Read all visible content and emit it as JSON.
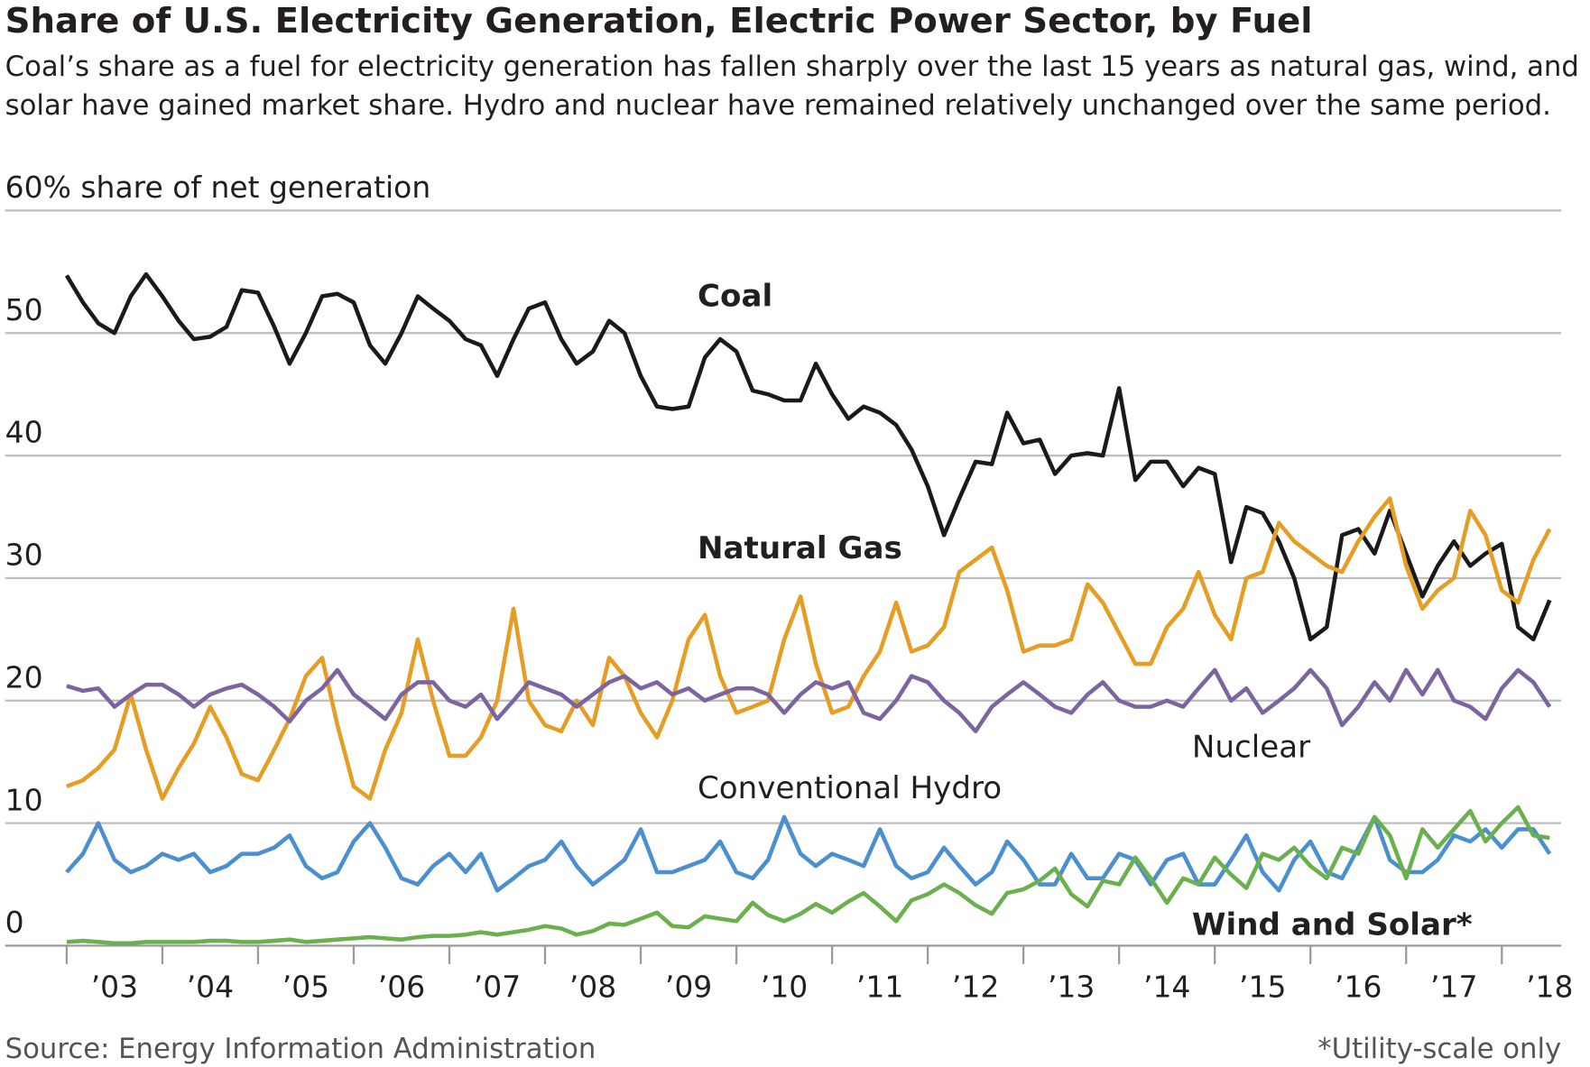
{
  "chart_data": {
    "type": "line",
    "title": "Share of U.S. Electricity Generation, Electric Power Sector, by Fuel",
    "subtitle": [
      "Coal’s share as a fuel for electricity generation has fallen sharply over the last 15 years as natural gas, wind, and",
      "solar have gained market share. Hydro and nuclear have remained relatively unchanged over the same period."
    ],
    "source": "Source:  Energy Information Administration",
    "note": "*Utility-scale only",
    "x": [
      2003,
      2003.17,
      2003.33,
      2003.5,
      2003.67,
      2003.83,
      2004,
      2004.17,
      2004.33,
      2004.5,
      2004.67,
      2004.83,
      2005,
      2005.17,
      2005.33,
      2005.5,
      2005.67,
      2005.83,
      2006,
      2006.17,
      2006.33,
      2006.5,
      2006.67,
      2006.83,
      2007,
      2007.17,
      2007.33,
      2007.5,
      2007.67,
      2007.83,
      2008,
      2008.17,
      2008.33,
      2008.5,
      2008.67,
      2008.83,
      2009,
      2009.17,
      2009.33,
      2009.5,
      2009.67,
      2009.83,
      2010,
      2010.17,
      2010.33,
      2010.5,
      2010.67,
      2010.83,
      2011,
      2011.17,
      2011.33,
      2011.5,
      2011.67,
      2011.83,
      2012,
      2012.17,
      2012.33,
      2012.5,
      2012.67,
      2012.83,
      2013,
      2013.17,
      2013.33,
      2013.5,
      2013.67,
      2013.83,
      2014,
      2014.17,
      2014.33,
      2014.5,
      2014.67,
      2014.83,
      2015,
      2015.17,
      2015.33,
      2015.5,
      2015.67,
      2015.83,
      2016,
      2016.17,
      2016.33,
      2016.5,
      2016.67,
      2016.83,
      2017,
      2017.17,
      2017.33,
      2017.5,
      2017.67,
      2017.83,
      2018,
      2018.17,
      2018.33,
      2018.5
    ],
    "series": [
      {
        "name": "Coal",
        "color": "#1a1a1a",
        "values": [
          54.7,
          52.5,
          50.8,
          50.0,
          53.0,
          54.8,
          53.0,
          51.0,
          49.5,
          49.7,
          50.5,
          53.5,
          53.3,
          50.5,
          47.5,
          50.0,
          53.0,
          53.2,
          52.5,
          49.0,
          47.5,
          50.0,
          53.0,
          52.0,
          51.0,
          49.5,
          49.0,
          46.5,
          49.5,
          52.0,
          52.5,
          49.5,
          47.5,
          48.5,
          51.0,
          50.0,
          46.5,
          44.0,
          43.8,
          44.0,
          48.0,
          49.5,
          48.5,
          45.3,
          45.0,
          44.5,
          44.5,
          47.5,
          45.0,
          43.0,
          44.0,
          43.5,
          42.5,
          40.5,
          37.5,
          33.5,
          36.5,
          39.5,
          39.3,
          43.5,
          41.0,
          41.3,
          38.5,
          40.0,
          40.2,
          40.0,
          45.5,
          38.0,
          39.5,
          39.5,
          37.5,
          39.0,
          38.5,
          31.3,
          35.8,
          35.3,
          33.0,
          30.0,
          25.0,
          26.0,
          33.5,
          34.0,
          32.0,
          35.5,
          32.0,
          28.5,
          31.0,
          33.0,
          31.0,
          32.0,
          32.8,
          26.0,
          25.0,
          28.2
        ]
      },
      {
        "name": "Natural Gas",
        "color": "#e69d24",
        "values": [
          13,
          13.5,
          14.5,
          16,
          20.5,
          16,
          12,
          14.5,
          16.5,
          19.5,
          17,
          14,
          13.5,
          16,
          18.5,
          22,
          23.5,
          18,
          13,
          12,
          16,
          19,
          25,
          20,
          15.5,
          15.5,
          17,
          20,
          27.5,
          20,
          18,
          17.5,
          20,
          18,
          23.5,
          22,
          19,
          17,
          20,
          25,
          27,
          22,
          19,
          19.5,
          20,
          25,
          28.5,
          23,
          19,
          19.5,
          22,
          24,
          28,
          24,
          24.5,
          26,
          30.5,
          31.5,
          32.5,
          29,
          24,
          24.5,
          24.5,
          25,
          29.5,
          28,
          25.5,
          23,
          23,
          26,
          27.5,
          30.5,
          27,
          25,
          30,
          30.5,
          34.5,
          33,
          32,
          31,
          30.5,
          33,
          35,
          36.5,
          31,
          27.5,
          29,
          30,
          35.5,
          33.5,
          29,
          28,
          31.5,
          34
        ]
      },
      {
        "name": "Nuclear",
        "color": "#7b64a0",
        "values": [
          21.2,
          20.8,
          21,
          19.5,
          20.5,
          21.3,
          21.3,
          20.5,
          19.5,
          20.5,
          21,
          21.3,
          20.5,
          19.5,
          18.3,
          20,
          21,
          22.5,
          20.5,
          19.5,
          18.5,
          20.5,
          21.5,
          21.5,
          20,
          19.5,
          20.5,
          18.5,
          20,
          21.5,
          21,
          20.5,
          19.5,
          20.5,
          21.5,
          22,
          21,
          21.5,
          20.5,
          21,
          20,
          20.5,
          21,
          21,
          20.5,
          19,
          20.5,
          21.5,
          21,
          21.5,
          19,
          18.5,
          20,
          22,
          21.5,
          20,
          19,
          17.5,
          19.5,
          20.5,
          21.5,
          20.5,
          19.5,
          19,
          20.5,
          21.5,
          20,
          19.5,
          19.5,
          20,
          19.5,
          21,
          22.5,
          20,
          21,
          19,
          20,
          21,
          22.5,
          21,
          18,
          19.5,
          21.5,
          20,
          22.5,
          20.5,
          22.5,
          20,
          19.5,
          18.5,
          21,
          22.5,
          21.5,
          19.5
        ]
      },
      {
        "name": "Conventional Hydro",
        "color": "#4a90d0",
        "values": [
          6,
          7.5,
          10,
          7,
          6,
          6.5,
          7.5,
          7,
          7.5,
          6,
          6.5,
          7.5,
          7.5,
          8,
          9,
          6.5,
          5.5,
          6,
          8.5,
          10,
          8,
          5.5,
          5,
          6.5,
          7.5,
          6,
          7.5,
          4.5,
          5.5,
          6.5,
          7,
          8.5,
          6.5,
          5,
          6,
          7,
          9.5,
          6,
          6,
          6.5,
          7,
          8.5,
          6,
          5.5,
          7,
          10.5,
          7.5,
          6.5,
          7.5,
          7,
          6.5,
          9.5,
          6.5,
          5.5,
          6,
          8,
          6.5,
          5,
          6,
          8.5,
          7,
          5,
          5,
          7.5,
          5.5,
          5.5,
          7.5,
          7,
          5,
          7,
          7.5,
          5,
          5,
          7,
          9,
          6,
          4.5,
          7,
          8.5,
          6,
          5.5,
          8,
          10.5,
          7,
          6,
          6,
          7,
          9,
          8.5,
          9.5,
          8,
          9.5,
          9.5,
          7.5
        ]
      },
      {
        "name": "Wind and Solar*",
        "color": "#6ab04c",
        "values": [
          0.3,
          0.4,
          0.3,
          0.2,
          0.2,
          0.3,
          0.3,
          0.3,
          0.3,
          0.4,
          0.4,
          0.3,
          0.3,
          0.4,
          0.5,
          0.3,
          0.4,
          0.5,
          0.6,
          0.7,
          0.6,
          0.5,
          0.7,
          0.8,
          0.8,
          0.9,
          1.1,
          0.9,
          1.1,
          1.3,
          1.6,
          1.4,
          0.9,
          1.2,
          1.8,
          1.7,
          2.2,
          2.7,
          1.6,
          1.5,
          2.4,
          2.2,
          2,
          3.5,
          2.5,
          2,
          2.6,
          3.4,
          2.7,
          3.6,
          4.3,
          3.2,
          2,
          3.7,
          4.2,
          5,
          4.3,
          3.3,
          2.6,
          4.3,
          4.6,
          5.3,
          6.3,
          4.2,
          3.2,
          5.3,
          5,
          7.2,
          5.5,
          3.5,
          5.5,
          5,
          7.2,
          5.8,
          4.7,
          7.5,
          7,
          8,
          6.5,
          5.5,
          8,
          7.5,
          10.5,
          9,
          5.5,
          9.5,
          8,
          9.5,
          11,
          8.5,
          10,
          11.3,
          9,
          8.8
        ]
      }
    ],
    "xlim": [
      2003,
      2018.6
    ],
    "xticks": [
      {
        "value": 2003,
        "label": "’03"
      },
      {
        "value": 2004,
        "label": "’04"
      },
      {
        "value": 2005,
        "label": "’05"
      },
      {
        "value": 2006,
        "label": "’06"
      },
      {
        "value": 2007,
        "label": "’07"
      },
      {
        "value": 2008,
        "label": "’08"
      },
      {
        "value": 2009,
        "label": "’09"
      },
      {
        "value": 2010,
        "label": "’10"
      },
      {
        "value": 2011,
        "label": "’11"
      },
      {
        "value": 2012,
        "label": "’12"
      },
      {
        "value": 2013,
        "label": "’13"
      },
      {
        "value": 2014,
        "label": "’14"
      },
      {
        "value": 2015,
        "label": "’15"
      },
      {
        "value": 2016,
        "label": "’16"
      },
      {
        "value": 2017,
        "label": "’17"
      },
      {
        "value": 2018,
        "label": "’18"
      }
    ],
    "ylim": [
      0,
      60
    ],
    "yticks": [
      0,
      10,
      20,
      30,
      40,
      50,
      {
        "value": 60,
        "label": "60% share of net generation"
      }
    ],
    "grid": true
  }
}
